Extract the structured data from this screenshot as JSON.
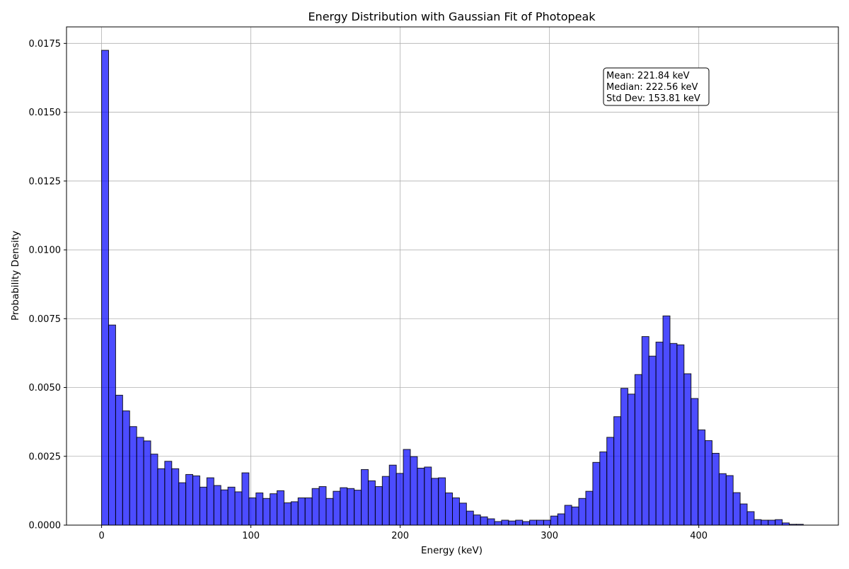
{
  "chart_data": {
    "type": "bar",
    "title": "Energy Distribution with Gaussian Fit of Photopeak",
    "xlabel": "Energy (keV)",
    "ylabel": "Probability Density",
    "xlim": [
      -23.5,
      493.5
    ],
    "ylim": [
      0,
      0.0181
    ],
    "grid": true,
    "x_ticks": [
      0,
      100,
      200,
      300,
      400
    ],
    "x_tick_labels": [
      "0",
      "100",
      "200",
      "300",
      "400"
    ],
    "y_ticks": [
      0,
      0.0025,
      0.005,
      0.0075,
      0.01,
      0.0125,
      0.015,
      0.0175
    ],
    "y_tick_labels": [
      "0.0000",
      "0.0025",
      "0.0050",
      "0.0075",
      "0.0100",
      "0.0125",
      "0.0150",
      "0.0175"
    ],
    "bin_start": 0,
    "bin_width": 4.7,
    "values": [
      0.01725,
      0.00727,
      0.00472,
      0.00415,
      0.00358,
      0.00319,
      0.00306,
      0.00258,
      0.00205,
      0.00232,
      0.00205,
      0.00154,
      0.00184,
      0.00179,
      0.00138,
      0.00172,
      0.00144,
      0.00128,
      0.00138,
      0.00121,
      0.0019,
      0.00099,
      0.00117,
      0.00097,
      0.00114,
      0.00125,
      0.00081,
      0.00085,
      0.00099,
      0.00099,
      0.00133,
      0.0014,
      0.00097,
      0.00123,
      0.00136,
      0.00133,
      0.00127,
      0.00202,
      0.00161,
      0.0014,
      0.00177,
      0.00218,
      0.00188,
      0.00275,
      0.00249,
      0.00207,
      0.00211,
      0.0017,
      0.00172,
      0.00117,
      0.00099,
      0.0008,
      0.00051,
      0.00037,
      0.0003,
      0.00023,
      0.00013,
      0.00018,
      0.00015,
      0.00018,
      0.00013,
      0.00018,
      0.00018,
      0.00018,
      0.00033,
      0.00041,
      0.00072,
      0.00066,
      0.00097,
      0.00123,
      0.00228,
      0.00266,
      0.00319,
      0.00394,
      0.00497,
      0.00476,
      0.00547,
      0.00685,
      0.00614,
      0.00665,
      0.0076,
      0.0066,
      0.00655,
      0.0055,
      0.0046,
      0.00346,
      0.00307,
      0.00261,
      0.00187,
      0.0018,
      0.00118,
      0.00077,
      0.00049,
      0.0002,
      0.00018,
      0.00018,
      0.0002,
      8e-05,
      3e-05,
      3e-05
    ],
    "bar_color": "#0000ff",
    "bar_alpha": 0.7,
    "edge_color": "#000000",
    "annotation": {
      "lines": [
        "Mean: 221.84 keV",
        "Median: 222.56 keV",
        "Std Dev: 153.81 keV"
      ],
      "position": "top-right"
    }
  }
}
